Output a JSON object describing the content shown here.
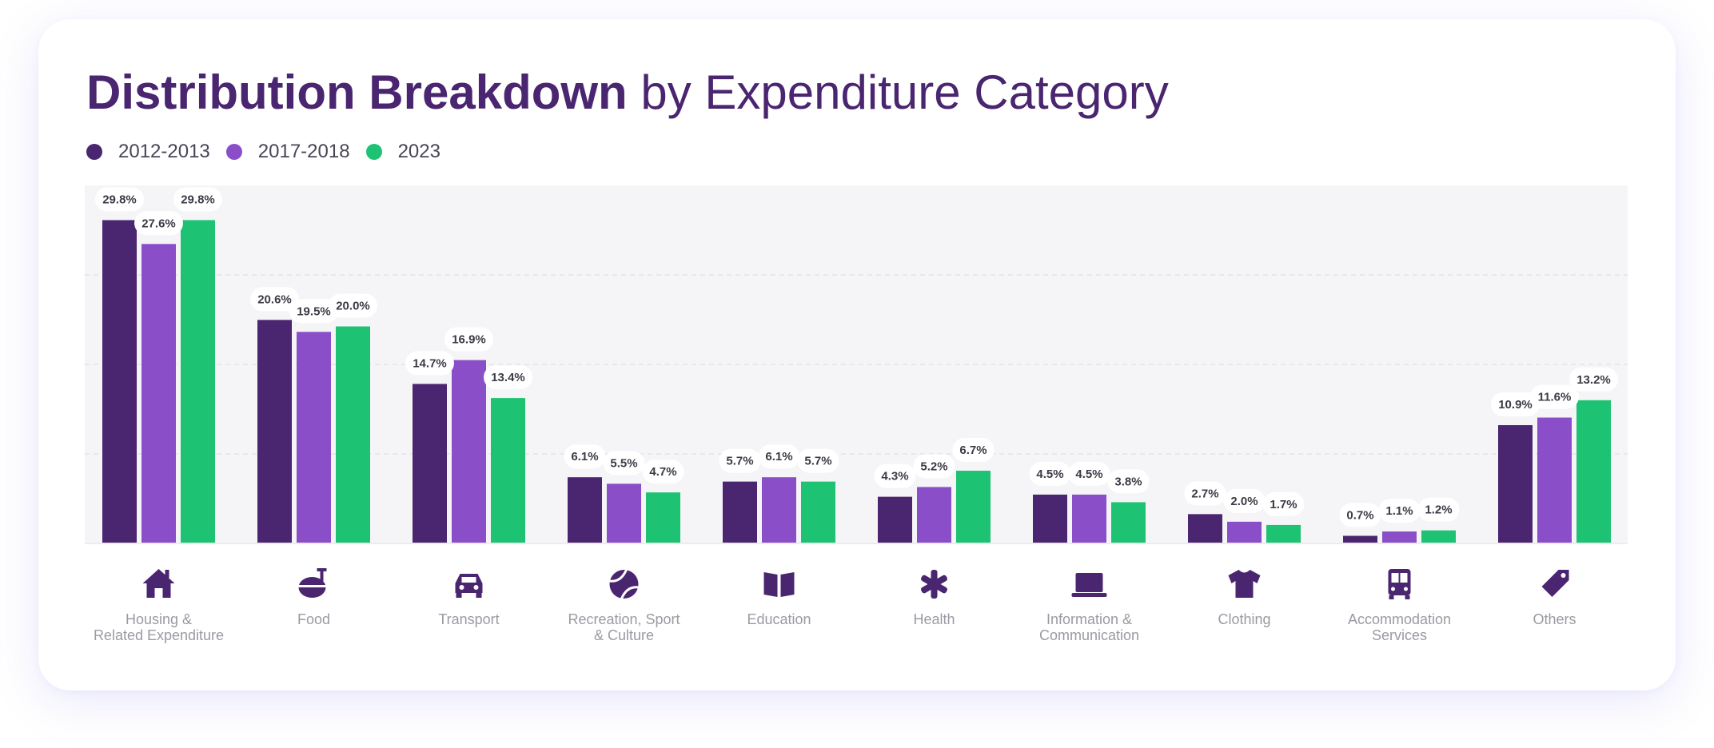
{
  "header": {
    "title_bold": "Distribution Breakdown",
    "title_rest": " by Expenditure Category"
  },
  "legend": [
    {
      "label": "2012-2013",
      "color": "#4a2570"
    },
    {
      "label": "2017-2018",
      "color": "#8a4fc8"
    },
    {
      "label": "2023",
      "color": "#1dc372"
    }
  ],
  "chart_data": {
    "type": "bar",
    "title": "Distribution Breakdown by Expenditure Category",
    "ylim": [
      0,
      33
    ],
    "grid": true,
    "legend_position": "top-left",
    "categories": [
      {
        "lines": [
          "Housing &",
          "Related Expenditure"
        ],
        "icon": "house-icon"
      },
      {
        "lines": [
          "Food"
        ],
        "icon": "food-icon"
      },
      {
        "lines": [
          "Transport"
        ],
        "icon": "car-icon"
      },
      {
        "lines": [
          "Recreation, Sport",
          "& Culture"
        ],
        "icon": "ball-icon"
      },
      {
        "lines": [
          "Education"
        ],
        "icon": "book-icon"
      },
      {
        "lines": [
          "Health"
        ],
        "icon": "asterisk-icon"
      },
      {
        "lines": [
          "Information &",
          "Communication"
        ],
        "icon": "laptop-icon"
      },
      {
        "lines": [
          "Clothing"
        ],
        "icon": "tshirt-icon"
      },
      {
        "lines": [
          "Accommodation",
          "Services"
        ],
        "icon": "bus-icon"
      },
      {
        "lines": [
          "Others"
        ],
        "icon": "tag-icon"
      }
    ],
    "series": [
      {
        "name": "2012-2013",
        "color": "#4a2570",
        "values": [
          29.8,
          20.6,
          14.7,
          6.1,
          5.7,
          4.3,
          4.5,
          2.7,
          0.7,
          10.9
        ],
        "labels": [
          "29.8%",
          "20.6%",
          "14.7%",
          "6.1%",
          "5.7%",
          "4.3%",
          "4.5%",
          "2.7%",
          "0.7%",
          "10.9%"
        ]
      },
      {
        "name": "2017-2018",
        "color": "#8a4fc8",
        "values": [
          27.6,
          19.5,
          16.9,
          5.5,
          6.1,
          5.2,
          4.5,
          2.0,
          1.1,
          11.6
        ],
        "labels": [
          "27.6%",
          "19.5%",
          "16.9%",
          "5.5%",
          "6.1%",
          "5.2%",
          "4.5%",
          "2.0%",
          "1.1%",
          "11.6%"
        ]
      },
      {
        "name": "2023",
        "color": "#1dc372",
        "values": [
          29.8,
          20.0,
          13.4,
          4.7,
          5.7,
          6.7,
          3.8,
          1.7,
          1.2,
          13.2
        ],
        "labels": [
          "29.8%",
          "20.0%",
          "13.4%",
          "4.7%",
          "5.7%",
          "6.7%",
          "3.8%",
          "1.7%",
          "1.2%",
          "13.2%"
        ]
      }
    ]
  }
}
